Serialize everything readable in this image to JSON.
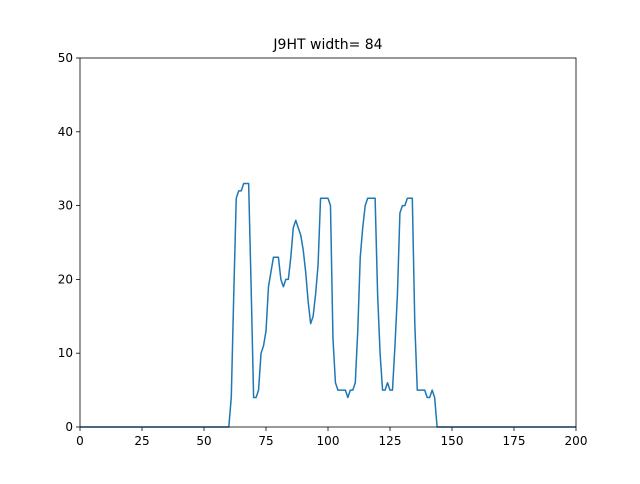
{
  "chart_data": {
    "type": "line",
    "title": "J9HT width= 84",
    "x": [
      0,
      1,
      2,
      3,
      4,
      5,
      6,
      7,
      8,
      9,
      10,
      11,
      12,
      13,
      14,
      15,
      16,
      17,
      18,
      19,
      20,
      21,
      22,
      23,
      24,
      25,
      26,
      27,
      28,
      29,
      30,
      31,
      32,
      33,
      34,
      35,
      36,
      37,
      38,
      39,
      40,
      41,
      42,
      43,
      44,
      45,
      46,
      47,
      48,
      49,
      50,
      51,
      52,
      53,
      54,
      55,
      56,
      57,
      58,
      59,
      60,
      61,
      62,
      63,
      64,
      65,
      66,
      67,
      68,
      69,
      70,
      71,
      72,
      73,
      74,
      75,
      76,
      77,
      78,
      79,
      80,
      81,
      82,
      83,
      84,
      85,
      86,
      87,
      88,
      89,
      90,
      91,
      92,
      93,
      94,
      95,
      96,
      97,
      98,
      99,
      100,
      101,
      102,
      103,
      104,
      105,
      106,
      107,
      108,
      109,
      110,
      111,
      112,
      113,
      114,
      115,
      116,
      117,
      118,
      119,
      120,
      121,
      122,
      123,
      124,
      125,
      126,
      127,
      128,
      129,
      130,
      131,
      132,
      133,
      134,
      135,
      136,
      137,
      138,
      139,
      140,
      141,
      142,
      143,
      144,
      145,
      146,
      147,
      148,
      149,
      150,
      151,
      152,
      153,
      154,
      155,
      156,
      157,
      158,
      159,
      160,
      161,
      162,
      163,
      164,
      165,
      166,
      167,
      168,
      169,
      170,
      171,
      172,
      173,
      174,
      175,
      176,
      177,
      178,
      179,
      180,
      181,
      182,
      183,
      184,
      185,
      186,
      187,
      188,
      189,
      190,
      191,
      192,
      193,
      194,
      195,
      196,
      197,
      198,
      199,
      200
    ],
    "series": [
      {
        "color": "#1f77b4",
        "values": [
          0,
          0,
          0,
          0,
          0,
          0,
          0,
          0,
          0,
          0,
          0,
          0,
          0,
          0,
          0,
          0,
          0,
          0,
          0,
          0,
          0,
          0,
          0,
          0,
          0,
          0,
          0,
          0,
          0,
          0,
          0,
          0,
          0,
          0,
          0,
          0,
          0,
          0,
          0,
          0,
          0,
          0,
          0,
          0,
          0,
          0,
          0,
          0,
          0,
          0,
          0,
          0,
          0,
          0,
          0,
          0,
          0,
          0,
          0,
          0,
          0,
          4,
          18,
          31,
          32,
          32,
          33,
          33,
          33,
          19,
          4,
          4,
          5,
          10,
          11,
          13,
          19,
          21,
          23,
          23,
          23,
          20,
          19,
          20,
          20,
          23,
          27,
          28,
          27,
          26,
          24,
          21,
          17,
          14,
          15,
          18,
          22,
          31,
          31,
          31,
          31,
          30,
          12,
          6,
          5,
          5,
          5,
          5,
          4,
          5,
          5,
          6,
          13,
          23,
          27,
          30,
          31,
          31,
          31,
          31,
          18,
          10,
          5,
          5,
          6,
          5,
          5,
          11,
          18,
          29,
          30,
          30,
          31,
          31,
          31,
          14,
          5,
          5,
          5,
          5,
          4,
          4,
          5,
          4,
          0,
          0,
          0,
          0,
          0,
          0,
          0,
          0,
          0,
          0,
          0,
          0,
          0,
          0,
          0,
          0,
          0,
          0,
          0,
          0,
          0,
          0,
          0,
          0,
          0,
          0,
          0,
          0,
          0,
          0,
          0,
          0,
          0,
          0,
          0,
          0,
          0,
          0,
          0,
          0,
          0,
          0,
          0,
          0,
          0,
          0,
          0,
          0,
          0,
          0,
          0,
          0,
          0,
          0,
          0,
          0,
          0
        ]
      }
    ],
    "xlim": [
      0,
      200
    ],
    "xticks": [
      0,
      25,
      50,
      75,
      100,
      125,
      150,
      175,
      200
    ],
    "ylim": [
      0,
      50
    ],
    "yticks": [
      0,
      10,
      20,
      30,
      40,
      50
    ],
    "grid": false
  }
}
